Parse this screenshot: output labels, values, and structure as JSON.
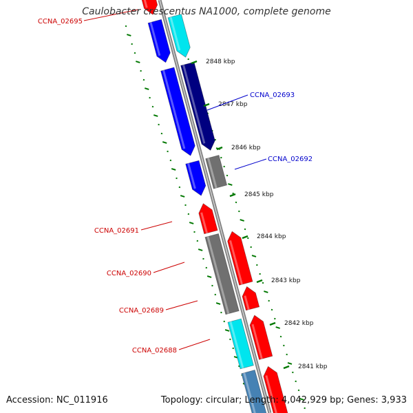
{
  "title": "Caulobacter crescentus NA1000, complete genome",
  "footer": {
    "accession": "Accession: NC_011916",
    "summary": "Topology: circular; Length: 4,042,929 bp; Genes: 3,933"
  },
  "colors": {
    "forward_gene": "#ff0000",
    "reverse_gene": "#0000ff",
    "dark_blue_gene": "#000080",
    "cyan_gene": "#00e5ee",
    "steel_blue_gene": "#4682b4",
    "gray_gene": "#707070",
    "backbone": "#808080",
    "gc_ticks": "#007700",
    "forward_label": "#cc0000",
    "reverse_label": "#0000cc"
  },
  "scale_ticks": [
    "2848 kbp",
    "2847 kbp",
    "2846 kbp",
    "2845 kbp",
    "2844 kbp",
    "2843 kbp",
    "2842 kbp",
    "2841 kbp"
  ],
  "gene_labels": [
    {
      "text": "CCNA_02695",
      "strand": "forward"
    },
    {
      "text": "CCNA_02693",
      "strand": "reverse"
    },
    {
      "text": "CCNA_02692",
      "strand": "reverse"
    },
    {
      "text": "CCNA_02691",
      "strand": "forward"
    },
    {
      "text": "CCNA_02690",
      "strand": "forward"
    },
    {
      "text": "CCNA_02689",
      "strand": "forward"
    },
    {
      "text": "CCNA_02688",
      "strand": "forward"
    }
  ]
}
